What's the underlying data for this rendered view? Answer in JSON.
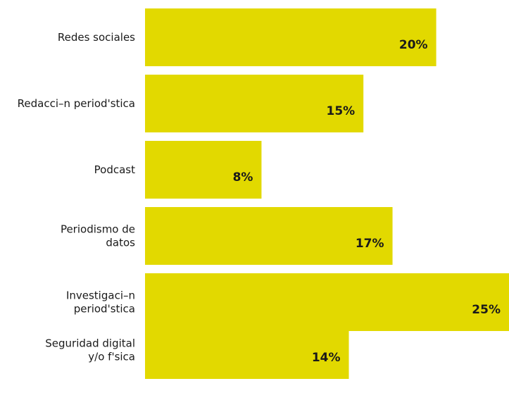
{
  "chart_data": {
    "type": "bar",
    "orientation": "horizontal",
    "categories": [
      [
        "Redes sociales"
      ],
      [
        "Redacci–n period'stica"
      ],
      [
        "Podcast"
      ],
      [
        "Periodismo de",
        "datos"
      ],
      [
        "Investigaci–n",
        "period'stica"
      ],
      [
        "Seguridad digital",
        "y/o f'sica"
      ]
    ],
    "values": [
      20,
      15,
      8,
      17,
      25,
      14
    ],
    "value_labels": [
      "20%",
      "15%",
      "8%",
      "17%",
      "25%",
      "14%"
    ],
    "xlim": [
      0,
      25
    ],
    "grid": false,
    "bar_color": "#e2d900"
  }
}
